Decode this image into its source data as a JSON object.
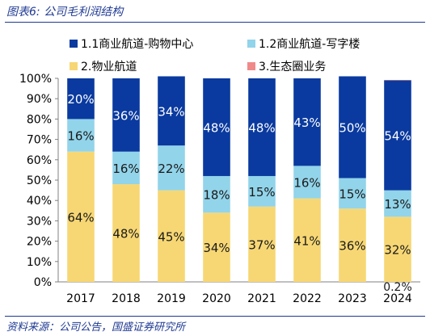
{
  "figure_title": "图表6: 公司毛利润结构",
  "source": "资料来源：公司公告，国盛证券研究所",
  "chart_data": {
    "type": "bar",
    "stacked": true,
    "categories": [
      "2017",
      "2018",
      "2019",
      "2020",
      "2021",
      "2022",
      "2023",
      "2024"
    ],
    "series": [
      {
        "name": "2.物业航道",
        "color": "#f7d774",
        "values": [
          64,
          48,
          45,
          34,
          37,
          41,
          36,
          32
        ],
        "labels": [
          "64%",
          "48%",
          "45%",
          "34%",
          "37%",
          "41%",
          "36%",
          "32%"
        ]
      },
      {
        "name": "1.2商业航道-写字楼",
        "color": "#92d4ea",
        "values": [
          16,
          16,
          22,
          18,
          15,
          16,
          15,
          13
        ],
        "labels": [
          "16%",
          "16%",
          "22%",
          "18%",
          "15%",
          "16%",
          "15%",
          "13%"
        ]
      },
      {
        "name": "1.1商业航道-购物中心",
        "color": "#0a3a9f",
        "values": [
          20,
          36,
          34,
          48,
          48,
          43,
          50,
          54
        ],
        "labels": [
          "20%",
          "36%",
          "34%",
          "48%",
          "48%",
          "43%",
          "50%",
          "54%"
        ]
      },
      {
        "name": "3.生态圈业务",
        "color": "#f08a8a",
        "values": [
          0,
          0,
          0,
          0,
          0,
          0,
          0,
          0.2
        ],
        "labels": [
          "",
          "",
          "",
          "",
          "",
          "",
          "",
          "0.2%"
        ]
      }
    ],
    "legend_order": [
      "1.1商业航道-购物中心",
      "1.2商业航道-写字楼",
      "2.物业航道",
      "3.生态圈业务"
    ],
    "y_ticks": [
      "0%",
      "10%",
      "20%",
      "30%",
      "40%",
      "50%",
      "60%",
      "70%",
      "80%",
      "90%",
      "100%"
    ],
    "ylim": [
      0,
      100
    ],
    "grid": false,
    "legend_position": "top"
  }
}
